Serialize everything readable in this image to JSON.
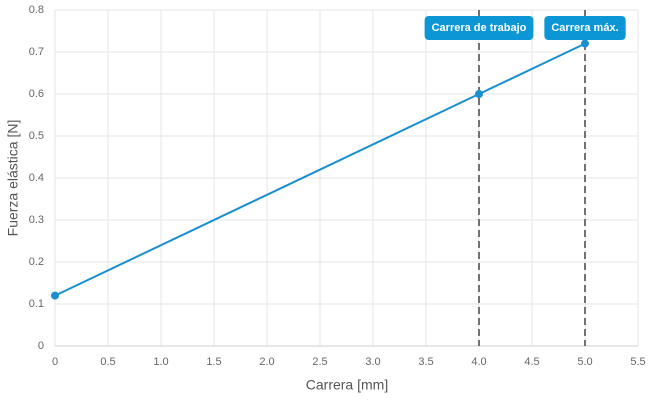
{
  "chart_data": {
    "type": "line",
    "x_label": "Carrera [mm]",
    "y_label": "Fuerza elástica [N]",
    "x": [
      0,
      4,
      5
    ],
    "values": [
      0.12,
      0.6,
      0.72
    ],
    "color": "#1a8fcf",
    "xlim": [
      0,
      5.5
    ],
    "ylim": [
      0,
      0.8
    ],
    "xticks": [
      0,
      0.5,
      {
        "value": 1,
        "label": "1.0"
      },
      1.5,
      {
        "value": 2,
        "label": "2.0"
      },
      2.5,
      {
        "value": 3,
        "label": "3.0"
      },
      3.5,
      {
        "value": 4,
        "label": "4.0"
      },
      4.5,
      {
        "value": 5,
        "label": "5.0"
      },
      5.5
    ],
    "yticks": [
      0,
      0.1,
      0.2,
      0.3,
      0.4,
      0.5,
      0.6,
      0.7,
      0.8
    ],
    "grid": true,
    "annotations": [
      {
        "x": 4,
        "label": "Carrera de trabajo"
      },
      {
        "x": 5,
        "label": "Carrera máx."
      }
    ],
    "annotation_color": "#0d96d6"
  }
}
